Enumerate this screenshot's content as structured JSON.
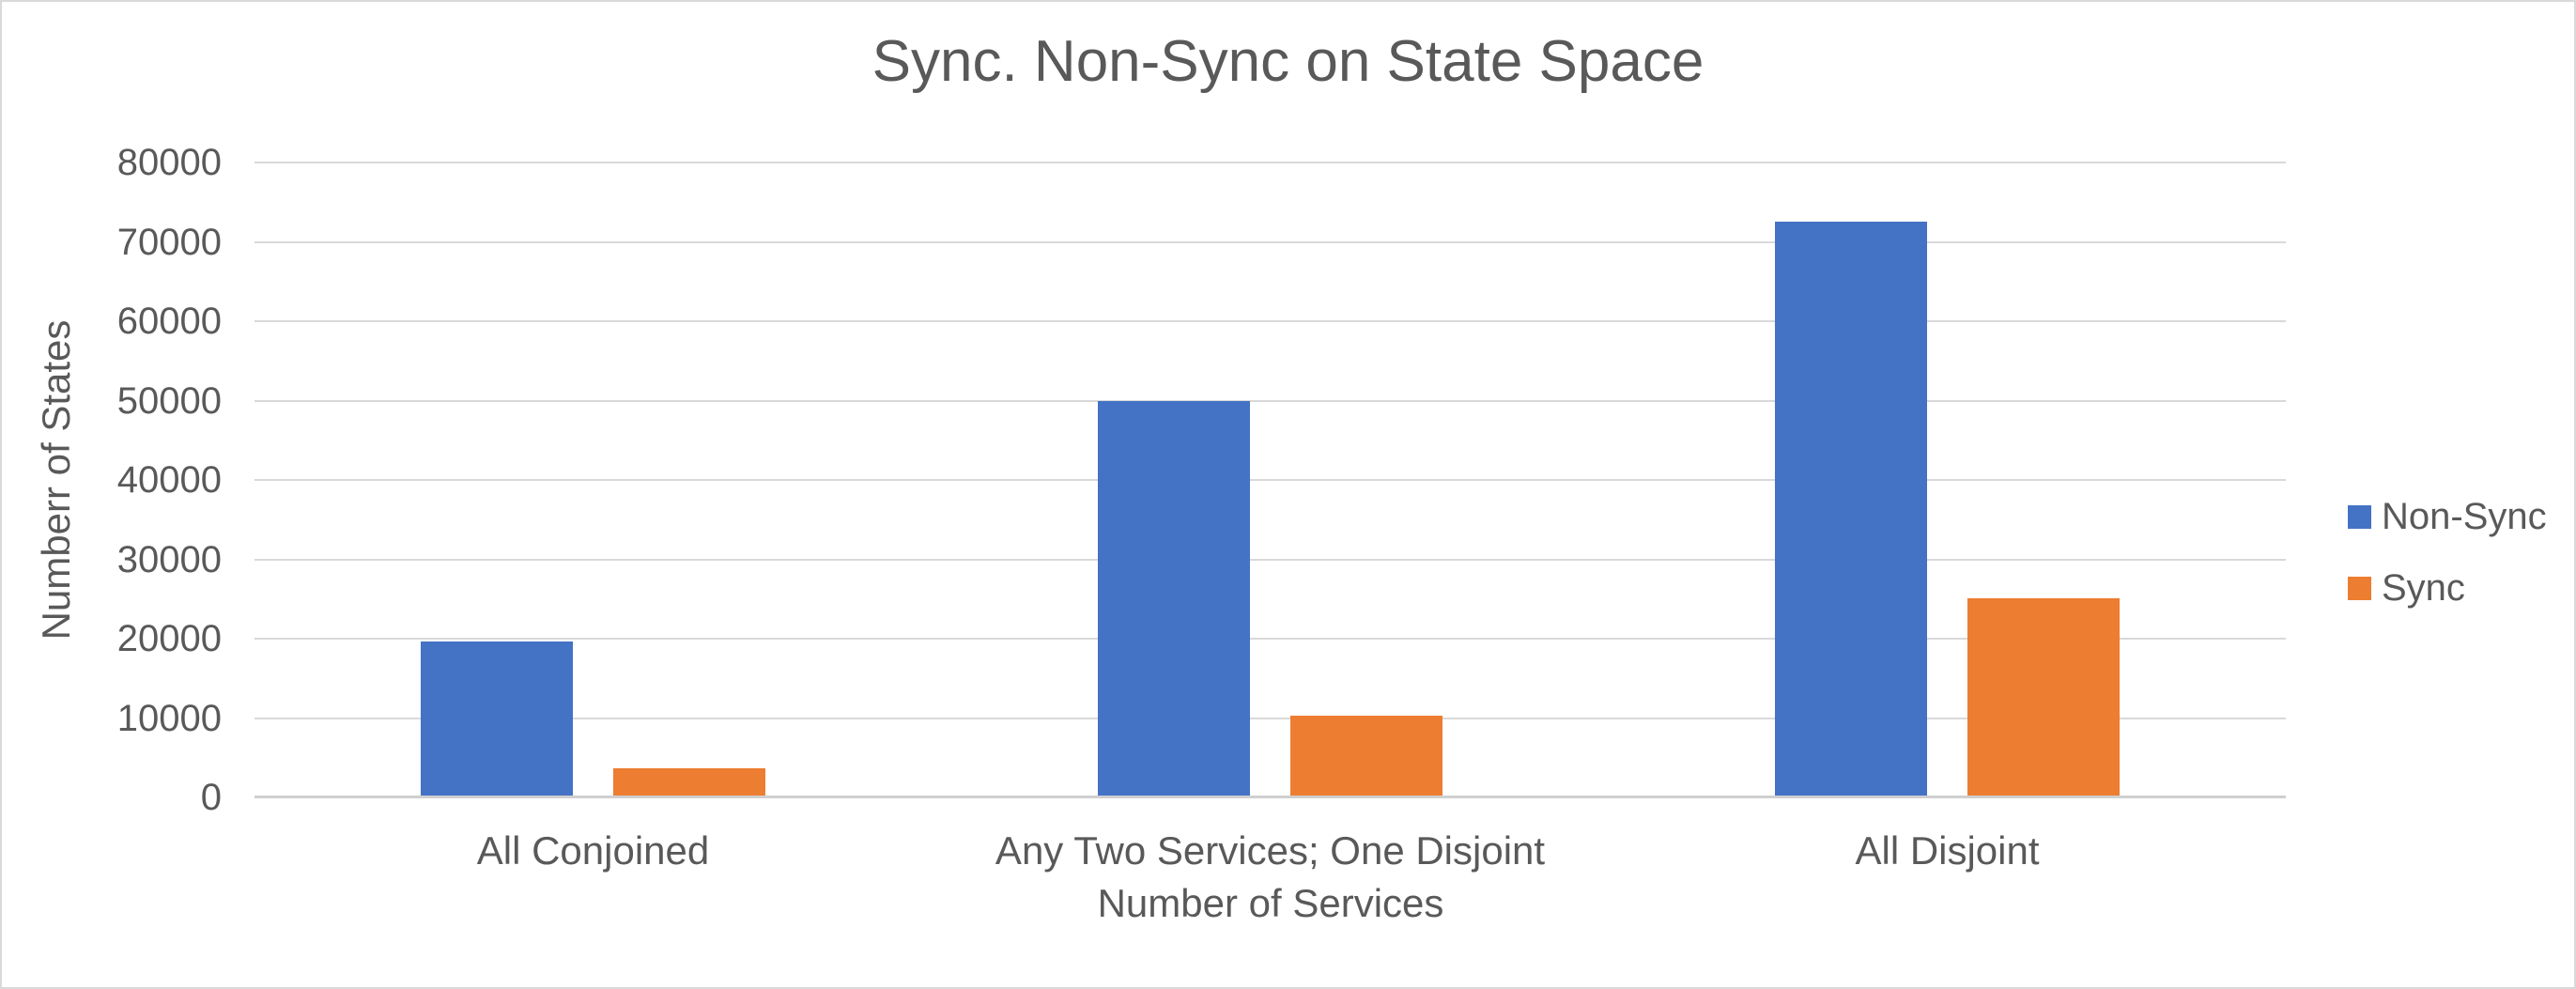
{
  "chart_data": {
    "type": "bar",
    "title": "Sync. Non-Sync on State Space",
    "xlabel": "Number of Services",
    "ylabel": "Numberr of States",
    "categories": [
      "All Conjoined",
      "Any Two Services; One Disjoint",
      "All Disjoint"
    ],
    "series": [
      {
        "name": "Non-Sync",
        "color": "#4472C4",
        "values": [
          19600,
          50000,
          72500
        ]
      },
      {
        "name": "Sync",
        "color": "#ED7D31",
        "values": [
          3700,
          10300,
          25100
        ]
      }
    ],
    "ylim": [
      0,
      80000
    ],
    "ytick_step": 10000,
    "ytick_labels": [
      "0",
      "10000",
      "20000",
      "30000",
      "40000",
      "50000",
      "60000",
      "70000",
      "80000"
    ],
    "grid": "horizontal-only",
    "legend_position": "right",
    "colors": {
      "text": "#595959",
      "gridline": "#D9D9D9",
      "axis_line": "#CFCFCF",
      "background": "#FFFFFF",
      "border": "#D9D9D9"
    }
  }
}
